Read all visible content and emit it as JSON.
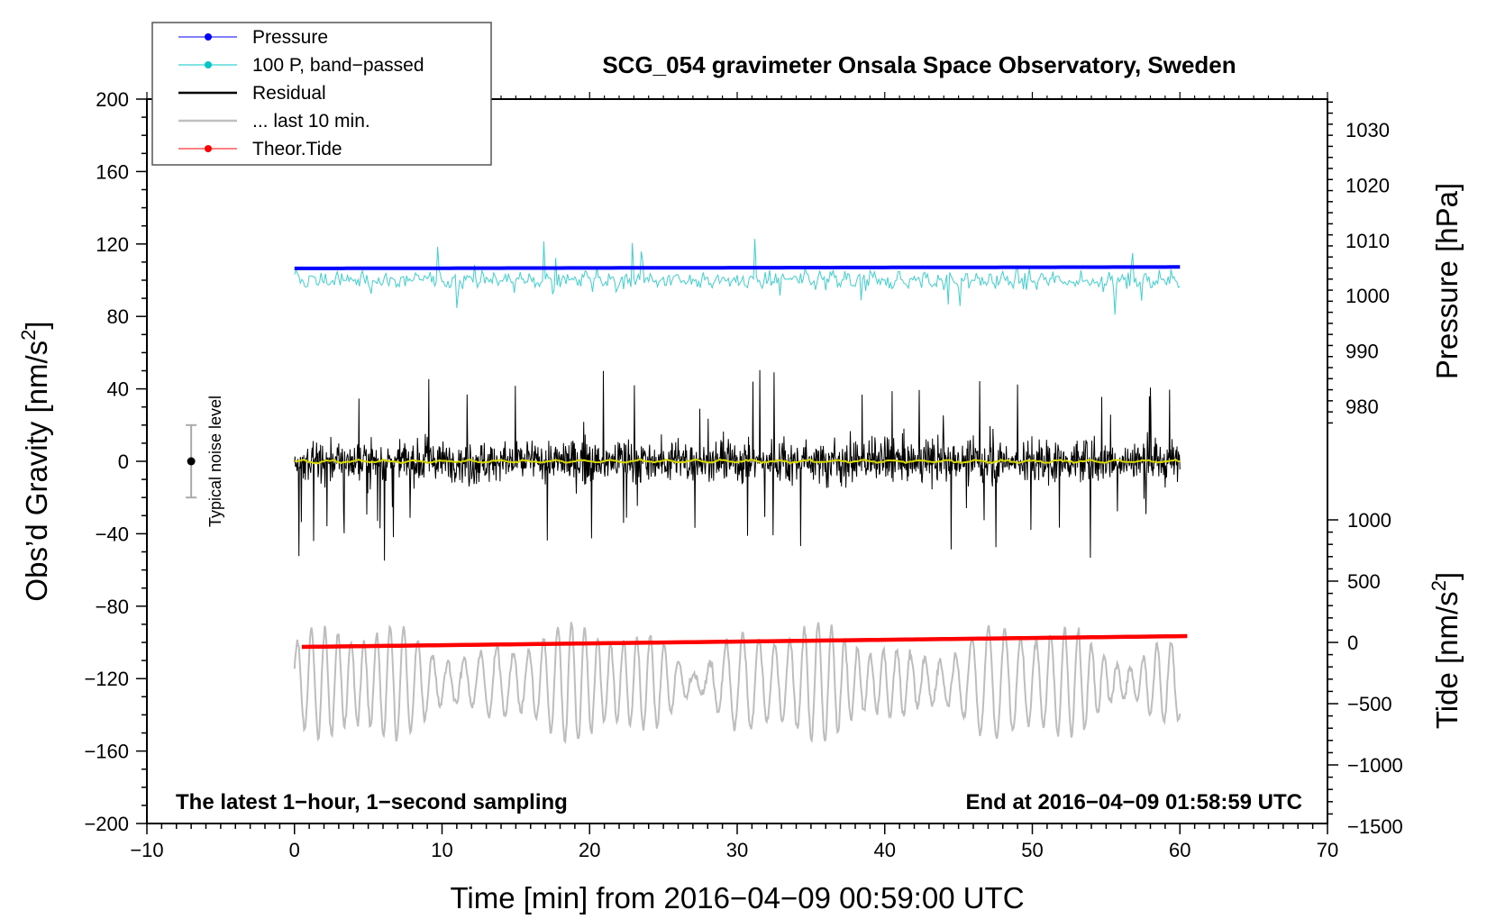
{
  "chart_data": {
    "type": "line",
    "title": "SCG_054 gravimeter Onsala Space Observatory, Sweden",
    "xlabel": "Time [min] from 2016−04−09 00:59:00 UTC",
    "ylabel_left": "Obs’d Gravity [nm/s",
    "ylabel_left_sup": "2",
    "ylabel_left_close": "]",
    "ylabel_pressure": "Pressure [hPa]",
    "ylabel_tide": "Tide [nm/s",
    "ylabel_tide_sup": "2",
    "ylabel_tide_close": "]",
    "xlim": [
      -10,
      70
    ],
    "ylim": [
      -200,
      200
    ],
    "x_ticks": [
      "−10",
      "0",
      "10",
      "20",
      "30",
      "40",
      "50",
      "60",
      "70"
    ],
    "x_tick_values": [
      -10,
      0,
      10,
      20,
      30,
      40,
      50,
      60,
      70
    ],
    "y_ticks": [
      "200",
      "160",
      "120",
      "80",
      "40",
      "0",
      "−40",
      "−80",
      "−120",
      "−160",
      "−200"
    ],
    "y_tick_values": [
      200,
      160,
      120,
      80,
      40,
      0,
      -40,
      -80,
      -120,
      -160,
      -200
    ],
    "pressure_ticks": [
      "1030",
      "1020",
      "1010",
      "1000",
      "990",
      "980"
    ],
    "pressure_tick_values": [
      1030,
      1020,
      1010,
      1000,
      990,
      980
    ],
    "tide_ticks": [
      "1000",
      "500",
      "0",
      "−500",
      "−1000",
      "−1500"
    ],
    "tide_tick_values": [
      1000,
      500,
      0,
      -500,
      -1000,
      -1500
    ],
    "annotation_left": "The latest 1−hour, 1−second sampling",
    "annotation_right": "End at 2016−04−09 01:58:59 UTC",
    "noise_label": "Typical noise level",
    "noise_bar": {
      "x": -7,
      "center": 0,
      "half_range": 20
    },
    "legend": [
      {
        "label": "Pressure",
        "color": "#0000ff",
        "marker": true
      },
      {
        "label": "100 P, band−passed",
        "color": "#00c8c8",
        "marker": true
      },
      {
        "label": "Residual",
        "color": "#000000",
        "marker": false
      },
      {
        "label": "... last 10 min.",
        "color": "#c0c0c0",
        "marker": false
      },
      {
        "label": "Theor.Tide",
        "color": "#ff0000",
        "marker": true
      }
    ],
    "series": [
      {
        "name": "Pressure",
        "color": "#0000ff",
        "x_range": [
          0,
          60
        ],
        "start": 106.5,
        "end": 107.3
      },
      {
        "name": "100 P, band−passed",
        "color": "#40d0d0",
        "x_range": [
          0,
          60
        ],
        "center": 100,
        "amplitude": 8
      },
      {
        "name": "Residual",
        "color": "#000000",
        "x_range": [
          0,
          60
        ],
        "center": 0,
        "amplitude": 22
      },
      {
        "name": "Residual (smoothed)",
        "color": "#d8d800",
        "x_range": [
          0,
          60
        ],
        "center": 0
      },
      {
        "name": "... last 10 min.",
        "color": "#bdbdbd",
        "x_range": [
          0,
          60
        ],
        "center": -122,
        "amplitude": 28
      },
      {
        "name": "Theor.Tide",
        "color": "#ff0000",
        "x_range": [
          0.5,
          60.5
        ],
        "start": -102.5,
        "end": -96.5
      }
    ]
  }
}
